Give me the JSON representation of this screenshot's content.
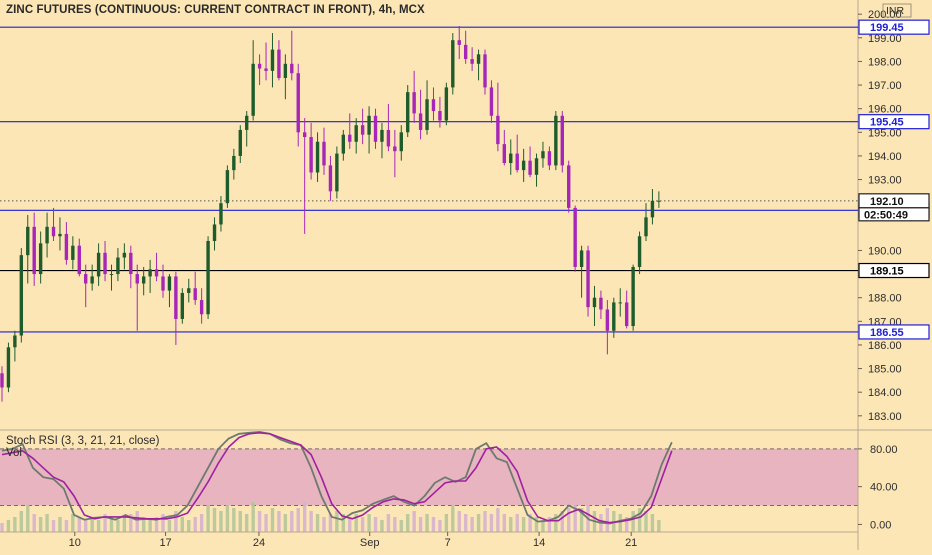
{
  "chart_data": {
    "type": "candlestick",
    "title": "ZINC FUTURES (CONTINUOUS: CURRENT CONTRACT IN FRONT), 4h, MCX",
    "currency": "INR",
    "price_axis": {
      "ylim": [
        182.4,
        200.6
      ],
      "ticks": [
        "200.00",
        "199.00",
        "198.00",
        "197.00",
        "196.00",
        "195.00",
        "194.00",
        "193.00",
        "190.00",
        "188.00",
        "187.00",
        "186.00",
        "185.00",
        "184.00",
        "183.00"
      ]
    },
    "x_axis": {
      "ticks": [
        {
          "label": "10",
          "index": 11.3
        },
        {
          "label": "17",
          "index": 25.4
        },
        {
          "label": "24",
          "index": 39.9
        },
        {
          "label": "Sep",
          "index": 57.1
        },
        {
          "label": "7",
          "index": 69.2
        },
        {
          "label": "14",
          "index": 83.4
        },
        {
          "label": "21",
          "index": 97.7
        }
      ]
    },
    "horizontal_levels": [
      {
        "value": 199.45,
        "label": "199.45",
        "color": "#1f1fd6"
      },
      {
        "value": 195.45,
        "label": "195.45",
        "color": "#1f1fd6"
      },
      {
        "value": 191.7,
        "label": "191.70",
        "color": "#1f1fd6"
      },
      {
        "value": 189.15,
        "label": "189.15",
        "color": "#000000"
      },
      {
        "value": 186.55,
        "label": "186.55",
        "color": "#1f1fd6"
      }
    ],
    "last_price": {
      "value": 192.1,
      "label": "192.10",
      "countdown": "02:50:49"
    },
    "colors": {
      "up": "#1f5c2c",
      "down": "#a626b8",
      "level": "#1f1fd6",
      "stoch_k": "#6e7a6e",
      "stoch_d": "#a020a0",
      "band": "#e7b4c0"
    },
    "ohlc": [
      [
        184.8,
        185.1,
        183.6,
        184.2
      ],
      [
        184.2,
        186.1,
        184.0,
        185.9
      ],
      [
        185.9,
        186.6,
        185.3,
        186.4
      ],
      [
        186.4,
        190.1,
        186.1,
        189.8
      ],
      [
        189.8,
        191.5,
        188.6,
        191.0
      ],
      [
        191.0,
        191.6,
        188.5,
        189.0
      ],
      [
        189.0,
        190.8,
        188.6,
        190.3
      ],
      [
        190.3,
        191.6,
        189.7,
        191.0
      ],
      [
        191.0,
        191.8,
        190.4,
        190.6
      ],
      [
        190.6,
        191.4,
        190.0,
        190.7
      ],
      [
        190.7,
        191.2,
        189.4,
        189.6
      ],
      [
        189.6,
        190.6,
        189.2,
        190.2
      ],
      [
        190.2,
        190.5,
        188.9,
        189.0
      ],
      [
        189.0,
        189.4,
        187.6,
        188.6
      ],
      [
        188.6,
        189.4,
        188.3,
        188.9
      ],
      [
        188.9,
        190.3,
        188.5,
        189.9
      ],
      [
        189.9,
        190.4,
        188.7,
        189.0
      ],
      [
        189.0,
        189.4,
        188.3,
        189.0
      ],
      [
        189.0,
        190.1,
        188.7,
        189.7
      ],
      [
        189.7,
        190.3,
        189.2,
        189.9
      ],
      [
        189.9,
        190.2,
        188.4,
        189.0
      ],
      [
        189.0,
        189.4,
        186.6,
        188.6
      ],
      [
        188.6,
        189.3,
        188.1,
        188.9
      ],
      [
        188.9,
        189.6,
        188.2,
        189.2
      ],
      [
        189.2,
        189.9,
        188.7,
        188.9
      ],
      [
        188.9,
        189.4,
        188.0,
        188.3
      ],
      [
        188.3,
        189.0,
        187.6,
        188.9
      ],
      [
        188.9,
        189.1,
        186.0,
        187.1
      ],
      [
        187.1,
        188.4,
        186.9,
        188.2
      ],
      [
        188.2,
        188.8,
        187.8,
        188.4
      ],
      [
        188.4,
        189.1,
        187.7,
        187.9
      ],
      [
        187.9,
        188.4,
        186.9,
        187.3
      ],
      [
        187.3,
        190.6,
        187.1,
        190.4
      ],
      [
        190.4,
        191.4,
        190.0,
        191.1
      ],
      [
        191.1,
        192.3,
        190.8,
        192.0
      ],
      [
        192.0,
        193.6,
        191.8,
        193.4
      ],
      [
        193.4,
        194.3,
        193.0,
        194.0
      ],
      [
        194.0,
        195.3,
        193.7,
        195.1
      ],
      [
        195.1,
        195.9,
        194.4,
        195.7
      ],
      [
        195.7,
        198.9,
        195.5,
        197.9
      ],
      [
        197.9,
        198.3,
        197.0,
        197.7
      ],
      [
        197.7,
        198.8,
        197.2,
        197.6
      ],
      [
        197.6,
        199.2,
        196.9,
        198.5
      ],
      [
        198.5,
        198.9,
        197.2,
        197.3
      ],
      [
        197.3,
        198.3,
        196.4,
        197.9
      ],
      [
        197.9,
        199.3,
        197.2,
        197.5
      ],
      [
        197.5,
        197.9,
        194.4,
        195.0
      ],
      [
        195.0,
        195.6,
        190.7,
        194.8
      ],
      [
        194.8,
        195.4,
        193.0,
        193.3
      ],
      [
        193.3,
        195.0,
        192.9,
        194.6
      ],
      [
        194.6,
        195.2,
        193.2,
        193.6
      ],
      [
        193.6,
        194.0,
        192.1,
        192.5
      ],
      [
        192.5,
        194.4,
        192.2,
        194.1
      ],
      [
        194.1,
        195.1,
        193.8,
        194.9
      ],
      [
        194.9,
        195.8,
        194.3,
        194.6
      ],
      [
        194.6,
        195.6,
        194.1,
        195.3
      ],
      [
        195.3,
        196.0,
        194.5,
        194.9
      ],
      [
        194.9,
        196.1,
        194.1,
        195.7
      ],
      [
        195.7,
        196.0,
        194.3,
        194.6
      ],
      [
        194.6,
        195.4,
        193.9,
        195.1
      ],
      [
        195.1,
        196.2,
        194.2,
        194.4
      ],
      [
        194.4,
        195.1,
        193.1,
        194.2
      ],
      [
        194.2,
        195.3,
        193.8,
        195.0
      ],
      [
        195.0,
        197.0,
        194.8,
        196.7
      ],
      [
        196.7,
        197.6,
        195.4,
        195.8
      ],
      [
        195.8,
        196.8,
        194.7,
        195.1
      ],
      [
        195.1,
        197.2,
        194.9,
        196.4
      ],
      [
        196.4,
        196.9,
        195.5,
        195.9
      ],
      [
        195.9,
        196.5,
        195.2,
        195.5
      ],
      [
        195.5,
        197.1,
        195.3,
        196.9
      ],
      [
        196.9,
        199.2,
        196.6,
        198.9
      ],
      [
        198.9,
        199.5,
        198.1,
        198.7
      ],
      [
        198.7,
        199.3,
        197.9,
        198.1
      ],
      [
        198.1,
        198.6,
        197.6,
        197.9
      ],
      [
        197.9,
        198.5,
        197.2,
        198.3
      ],
      [
        198.3,
        198.5,
        196.6,
        196.9
      ],
      [
        196.9,
        197.2,
        195.4,
        195.7
      ],
      [
        195.7,
        197.1,
        194.2,
        194.5
      ],
      [
        194.5,
        195.1,
        193.6,
        193.7
      ],
      [
        193.7,
        194.7,
        193.2,
        194.1
      ],
      [
        194.1,
        194.9,
        193.3,
        193.4
      ],
      [
        193.4,
        194.3,
        192.9,
        193.8
      ],
      [
        193.8,
        194.4,
        193.1,
        193.2
      ],
      [
        193.2,
        194.1,
        192.7,
        193.9
      ],
      [
        193.9,
        194.6,
        193.5,
        194.2
      ],
      [
        194.2,
        194.4,
        193.4,
        193.6
      ],
      [
        193.6,
        195.9,
        193.4,
        195.7
      ],
      [
        195.7,
        195.9,
        193.3,
        193.6
      ],
      [
        193.6,
        193.8,
        191.6,
        191.8
      ],
      [
        191.8,
        191.9,
        189.1,
        189.3
      ],
      [
        189.3,
        190.2,
        188.0,
        190.0
      ],
      [
        190.0,
        190.2,
        187.2,
        187.6
      ],
      [
        187.6,
        188.5,
        186.8,
        188.0
      ],
      [
        188.0,
        188.3,
        187.1,
        187.5
      ],
      [
        187.5,
        187.9,
        185.6,
        186.6
      ],
      [
        186.6,
        188.0,
        186.3,
        187.8
      ],
      [
        187.8,
        188.4,
        187.2,
        187.8
      ],
      [
        187.8,
        188.3,
        186.7,
        186.8
      ],
      [
        186.8,
        189.4,
        186.6,
        189.3
      ],
      [
        189.3,
        190.8,
        189.0,
        190.6
      ],
      [
        190.6,
        192.0,
        190.4,
        191.4
      ],
      [
        191.4,
        192.6,
        191.1,
        192.1
      ],
      [
        192.1,
        192.5,
        191.8,
        192.1
      ]
    ],
    "volume": [
      3,
      4,
      5,
      7,
      9,
      6,
      5,
      6,
      4,
      5,
      4,
      6,
      5,
      4,
      5,
      4,
      6,
      5,
      4,
      5,
      6,
      7,
      5,
      4,
      5,
      6,
      4,
      7,
      5,
      4,
      5,
      6,
      9,
      8,
      7,
      9,
      8,
      7,
      6,
      10,
      7,
      6,
      8,
      7,
      6,
      7,
      8,
      10,
      7,
      6,
      5,
      6,
      7,
      6,
      5,
      6,
      5,
      6,
      5,
      4,
      6,
      5,
      4,
      6,
      7,
      5,
      6,
      5,
      4,
      6,
      9,
      7,
      6,
      5,
      6,
      7,
      6,
      8,
      6,
      5,
      6,
      5,
      6,
      5,
      4,
      5,
      6,
      7,
      8,
      9,
      8,
      9,
      7,
      6,
      8,
      7,
      6,
      5,
      7,
      8,
      7,
      6,
      4
    ],
    "stoch_rsi": {
      "label": "Stoch RSI (3, 3, 21, 21, close)",
      "volume_label": "Vol",
      "ylim": [
        -8,
        100
      ],
      "band": [
        20,
        80
      ],
      "ticks": [
        "80.00",
        "40.00",
        "0.00"
      ],
      "k": [
        [
          0,
          78
        ],
        [
          2,
          80
        ],
        [
          4,
          85
        ],
        [
          6,
          60
        ],
        [
          8,
          50
        ],
        [
          10,
          48
        ],
        [
          12,
          38
        ],
        [
          14,
          10
        ],
        [
          16,
          5
        ],
        [
          18,
          7
        ],
        [
          20,
          8
        ],
        [
          22,
          5
        ],
        [
          24,
          10
        ],
        [
          26,
          5
        ],
        [
          28,
          6
        ],
        [
          30,
          5
        ],
        [
          32,
          8
        ],
        [
          34,
          10
        ],
        [
          36,
          20
        ],
        [
          38,
          40
        ],
        [
          40,
          60
        ],
        [
          42,
          80
        ],
        [
          44,
          91
        ],
        [
          46,
          96
        ],
        [
          48,
          97
        ],
        [
          50,
          98
        ],
        [
          52,
          96
        ],
        [
          54,
          90
        ],
        [
          56,
          86
        ],
        [
          58,
          84
        ],
        [
          60,
          60
        ],
        [
          62,
          30
        ],
        [
          64,
          8
        ],
        [
          66,
          5
        ],
        [
          68,
          12
        ],
        [
          70,
          15
        ],
        [
          72,
          22
        ],
        [
          74,
          26
        ],
        [
          76,
          30
        ],
        [
          78,
          24
        ],
        [
          80,
          20
        ],
        [
          82,
          30
        ],
        [
          84,
          44
        ],
        [
          86,
          50
        ],
        [
          88,
          45
        ],
        [
          90,
          50
        ],
        [
          92,
          80
        ],
        [
          94,
          86
        ],
        [
          96,
          70
        ],
        [
          98,
          66
        ],
        [
          100,
          38
        ],
        [
          102,
          10
        ],
        [
          104,
          3
        ],
        [
          106,
          4
        ],
        [
          108,
          8
        ],
        [
          110,
          20
        ],
        [
          112,
          15
        ],
        [
          114,
          5
        ],
        [
          116,
          2
        ],
        [
          118,
          1
        ],
        [
          120,
          4
        ],
        [
          122,
          6
        ],
        [
          124,
          12
        ],
        [
          126,
          30
        ],
        [
          128,
          63
        ],
        [
          130,
          87
        ]
      ],
      "d": [
        [
          0,
          74
        ],
        [
          2,
          76
        ],
        [
          4,
          78
        ],
        [
          6,
          70
        ],
        [
          8,
          60
        ],
        [
          10,
          50
        ],
        [
          12,
          45
        ],
        [
          14,
          30
        ],
        [
          16,
          10
        ],
        [
          18,
          6
        ],
        [
          20,
          8
        ],
        [
          22,
          8
        ],
        [
          24,
          8
        ],
        [
          26,
          7
        ],
        [
          28,
          6
        ],
        [
          30,
          6
        ],
        [
          32,
          6
        ],
        [
          34,
          8
        ],
        [
          36,
          12
        ],
        [
          38,
          28
        ],
        [
          40,
          45
        ],
        [
          42,
          65
        ],
        [
          44,
          82
        ],
        [
          46,
          92
        ],
        [
          48,
          96
        ],
        [
          50,
          97
        ],
        [
          52,
          96
        ],
        [
          54,
          92
        ],
        [
          56,
          88
        ],
        [
          58,
          84
        ],
        [
          60,
          74
        ],
        [
          62,
          50
        ],
        [
          64,
          22
        ],
        [
          66,
          9
        ],
        [
          68,
          6
        ],
        [
          70,
          10
        ],
        [
          72,
          18
        ],
        [
          74,
          24
        ],
        [
          76,
          27
        ],
        [
          78,
          26
        ],
        [
          80,
          22
        ],
        [
          82,
          24
        ],
        [
          84,
          34
        ],
        [
          86,
          44
        ],
        [
          88,
          46
        ],
        [
          90,
          46
        ],
        [
          92,
          60
        ],
        [
          94,
          80
        ],
        [
          96,
          82
        ],
        [
          98,
          72
        ],
        [
          100,
          56
        ],
        [
          102,
          25
        ],
        [
          104,
          8
        ],
        [
          106,
          4
        ],
        [
          108,
          4
        ],
        [
          110,
          12
        ],
        [
          112,
          16
        ],
        [
          114,
          10
        ],
        [
          116,
          4
        ],
        [
          118,
          2
        ],
        [
          120,
          3
        ],
        [
          122,
          5
        ],
        [
          124,
          8
        ],
        [
          126,
          18
        ],
        [
          128,
          48
        ],
        [
          130,
          78
        ]
      ]
    }
  }
}
